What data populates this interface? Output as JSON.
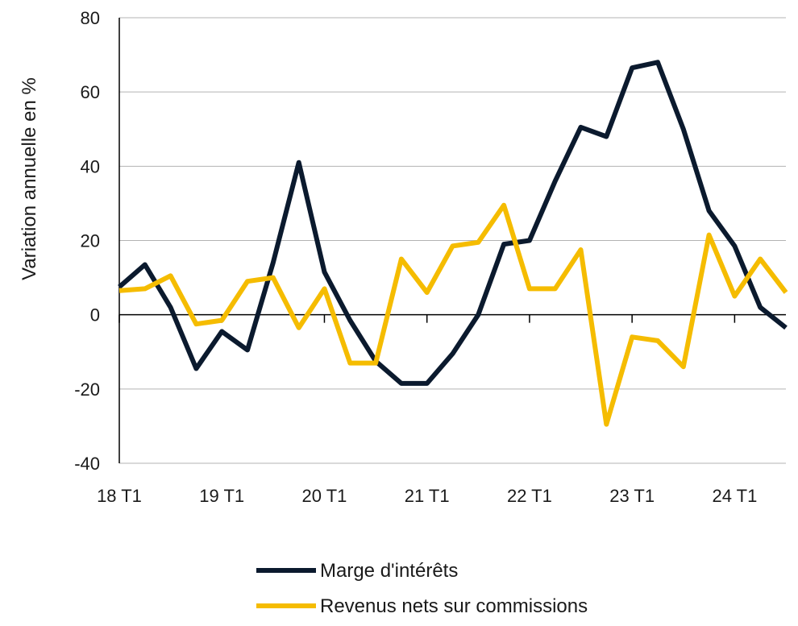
{
  "chart_data": {
    "type": "line",
    "ylabel": "Variation annuelle en %",
    "xlabel": "",
    "ylim": [
      -40,
      80
    ],
    "yticks": [
      -40,
      -20,
      0,
      20,
      40,
      60,
      80
    ],
    "x_tick_labels": [
      "18 T1",
      "19 T1",
      "20 T1",
      "21 T1",
      "22 T1",
      "23 T1",
      "24 T1"
    ],
    "x_tick_positions": [
      0,
      4,
      8,
      12,
      16,
      20,
      24
    ],
    "x_range": [
      0,
      26
    ],
    "grid": "horizontal",
    "legend_position": "bottom",
    "series": [
      {
        "name": "Marge d'intérêts",
        "color": "#0b1a2e",
        "values": [
          7.5,
          13.5,
          2,
          -14.5,
          -4.5,
          -9.5,
          14,
          41,
          11.5,
          -1.5,
          -12.5,
          -18.5,
          -18.5,
          -10.5,
          0,
          19,
          20,
          36,
          50.5,
          48,
          66.5,
          68,
          50,
          28,
          18.5,
          2,
          -3.5
        ]
      },
      {
        "name": "Revenus nets sur commissions",
        "color": "#f5bc00",
        "values": [
          6.5,
          7,
          10.5,
          -2.5,
          -1.5,
          9,
          10,
          -3.5,
          7,
          -13,
          -13,
          15,
          6,
          18.5,
          19.5,
          29.5,
          7,
          7,
          17.5,
          -29.5,
          -6,
          -7,
          -14,
          21.5,
          5,
          15,
          6
        ]
      }
    ]
  }
}
